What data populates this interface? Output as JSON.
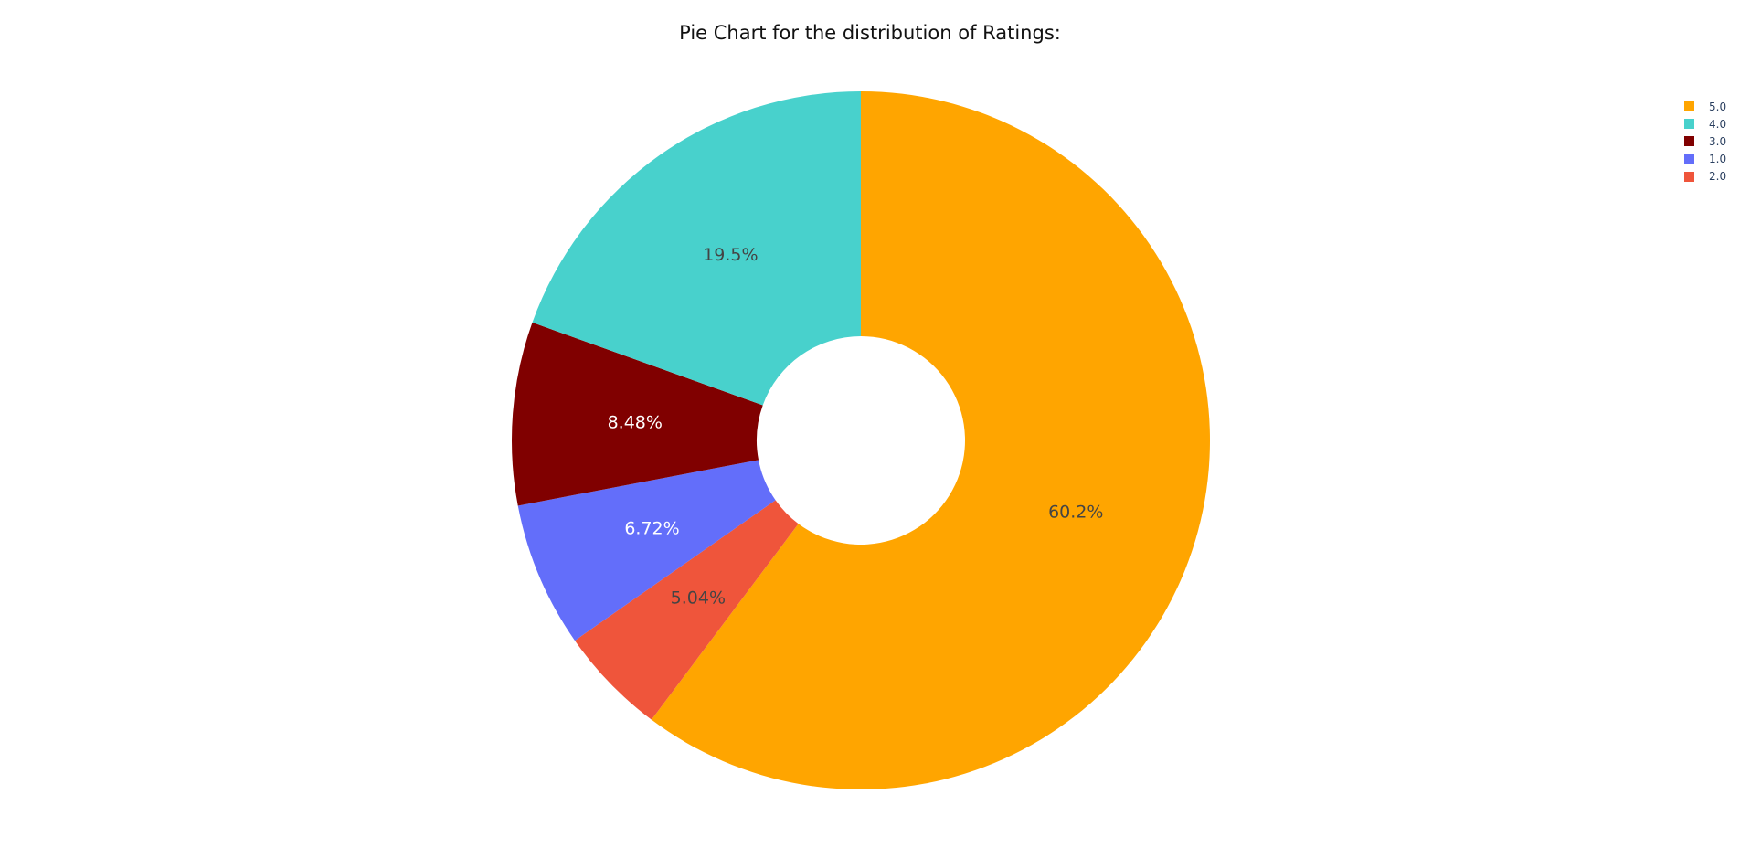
{
  "chart_data": {
    "type": "pie",
    "title": "Pie Chart for the distribution of Ratings:",
    "hole": true,
    "legend_position": "top-right",
    "slices": [
      {
        "label": "5.0",
        "percent_label": "60.2%",
        "value": 60.2,
        "color": "#FFA500",
        "text_color": "#444444"
      },
      {
        "label": "2.0",
        "percent_label": "5.04%",
        "value": 5.04,
        "color": "#EF553B",
        "text_color": "#444444"
      },
      {
        "label": "1.0",
        "percent_label": "6.72%",
        "value": 6.72,
        "color": "#636EFA",
        "text_color": "#ffffff"
      },
      {
        "label": "3.0",
        "percent_label": "8.48%",
        "value": 8.48,
        "color": "#800000",
        "text_color": "#ffffff"
      },
      {
        "label": "4.0",
        "percent_label": "19.5%",
        "value": 19.5,
        "color": "#48D1CC",
        "text_color": "#444444"
      }
    ],
    "legend": [
      {
        "label": "5.0",
        "color": "#FFA500"
      },
      {
        "label": "4.0",
        "color": "#48D1CC"
      },
      {
        "label": "3.0",
        "color": "#800000"
      },
      {
        "label": "1.0",
        "color": "#636EFA"
      },
      {
        "label": "2.0",
        "color": "#EF553B"
      }
    ]
  }
}
